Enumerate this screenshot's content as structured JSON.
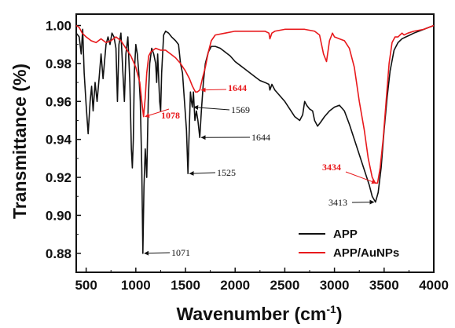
{
  "chart_data": {
    "type": "line",
    "xlabel": "Wavenumber (cm",
    "xlabel_sup": "-1",
    "xlabel_close": ")",
    "ylabel": "Transmittance (%)",
    "xlim": [
      400,
      4000
    ],
    "ylim": [
      0.87,
      1.006
    ],
    "x_ticks": [
      500,
      1000,
      1500,
      2000,
      2500,
      3000,
      3500,
      4000
    ],
    "y_ticks": [
      0.88,
      0.9,
      0.92,
      0.94,
      0.96,
      0.98,
      1.0
    ],
    "x_tick_labels": [
      "500",
      "1000",
      "1500",
      "2000",
      "2500",
      "3000",
      "3500",
      "4000"
    ],
    "y_tick_labels": [
      "0.88",
      "0.90",
      "0.92",
      "0.94",
      "0.96",
      "0.98",
      "1.00"
    ],
    "grid": false,
    "legend_position": "bottom-right",
    "colors": {
      "APP": "#111111",
      "APP/AuNPs": "#e8191c"
    },
    "series": [
      {
        "name": "APP",
        "color": "#111111",
        "points": [
          [
            400,
            0.996
          ],
          [
            430,
            0.994
          ],
          [
            450,
            0.985
          ],
          [
            465,
            0.998
          ],
          [
            480,
            0.975
          ],
          [
            500,
            0.958
          ],
          [
            520,
            0.943
          ],
          [
            540,
            0.96
          ],
          [
            555,
            0.968
          ],
          [
            570,
            0.955
          ],
          [
            590,
            0.97
          ],
          [
            610,
            0.96
          ],
          [
            630,
            0.972
          ],
          [
            650,
            0.985
          ],
          [
            670,
            0.972
          ],
          [
            700,
            0.99
          ],
          [
            720,
            0.994
          ],
          [
            740,
            0.99
          ],
          [
            760,
            0.996
          ],
          [
            780,
            0.994
          ],
          [
            800,
            0.988
          ],
          [
            815,
            0.96
          ],
          [
            830,
            0.99
          ],
          [
            850,
            0.996
          ],
          [
            870,
            0.975
          ],
          [
            885,
            0.96
          ],
          [
            900,
            0.985
          ],
          [
            920,
            0.994
          ],
          [
            940,
            0.97
          ],
          [
            955,
            0.935
          ],
          [
            965,
            0.925
          ],
          [
            975,
            0.94
          ],
          [
            985,
            0.975
          ],
          [
            1000,
            0.99
          ],
          [
            1015,
            0.985
          ],
          [
            1030,
            0.975
          ],
          [
            1045,
            0.96
          ],
          [
            1060,
            0.925
          ],
          [
            1071,
            0.88
          ],
          [
            1082,
            0.915
          ],
          [
            1095,
            0.935
          ],
          [
            1110,
            0.92
          ],
          [
            1125,
            0.96
          ],
          [
            1140,
            0.98
          ],
          [
            1160,
            0.988
          ],
          [
            1180,
            0.985
          ],
          [
            1200,
            0.98
          ],
          [
            1210,
            0.97
          ],
          [
            1220,
            0.985
          ],
          [
            1240,
            0.96
          ],
          [
            1250,
            0.955
          ],
          [
            1260,
            0.975
          ],
          [
            1280,
            0.995
          ],
          [
            1300,
            0.997
          ],
          [
            1330,
            0.996
          ],
          [
            1360,
            0.994
          ],
          [
            1400,
            0.992
          ],
          [
            1430,
            0.99
          ],
          [
            1450,
            0.98
          ],
          [
            1470,
            0.975
          ],
          [
            1490,
            0.96
          ],
          [
            1510,
            0.945
          ],
          [
            1525,
            0.922
          ],
          [
            1535,
            0.94
          ],
          [
            1550,
            0.965
          ],
          [
            1560,
            0.96
          ],
          [
            1569,
            0.957
          ],
          [
            1580,
            0.965
          ],
          [
            1595,
            0.95
          ],
          [
            1610,
            0.955
          ],
          [
            1625,
            0.95
          ],
          [
            1644,
            0.941
          ],
          [
            1660,
            0.955
          ],
          [
            1680,
            0.97
          ],
          [
            1700,
            0.98
          ],
          [
            1730,
            0.986
          ],
          [
            1760,
            0.989
          ],
          [
            1800,
            0.989
          ],
          [
            1850,
            0.988
          ],
          [
            1900,
            0.986
          ],
          [
            1950,
            0.984
          ],
          [
            2000,
            0.981
          ],
          [
            2050,
            0.979
          ],
          [
            2100,
            0.977
          ],
          [
            2150,
            0.975
          ],
          [
            2200,
            0.973
          ],
          [
            2250,
            0.971
          ],
          [
            2300,
            0.97
          ],
          [
            2340,
            0.969
          ],
          [
            2350,
            0.966
          ],
          [
            2370,
            0.969
          ],
          [
            2400,
            0.966
          ],
          [
            2450,
            0.963
          ],
          [
            2500,
            0.96
          ],
          [
            2550,
            0.956
          ],
          [
            2600,
            0.952
          ],
          [
            2650,
            0.95
          ],
          [
            2680,
            0.953
          ],
          [
            2700,
            0.96
          ],
          [
            2720,
            0.958
          ],
          [
            2750,
            0.956
          ],
          [
            2780,
            0.955
          ],
          [
            2800,
            0.95
          ],
          [
            2830,
            0.947
          ],
          [
            2860,
            0.949
          ],
          [
            2900,
            0.952
          ],
          [
            2950,
            0.955
          ],
          [
            3000,
            0.957
          ],
          [
            3050,
            0.958
          ],
          [
            3100,
            0.955
          ],
          [
            3150,
            0.948
          ],
          [
            3200,
            0.94
          ],
          [
            3250,
            0.932
          ],
          [
            3300,
            0.924
          ],
          [
            3350,
            0.916
          ],
          [
            3380,
            0.91
          ],
          [
            3413,
            0.907
          ],
          [
            3440,
            0.912
          ],
          [
            3470,
            0.925
          ],
          [
            3500,
            0.945
          ],
          [
            3530,
            0.962
          ],
          [
            3560,
            0.976
          ],
          [
            3600,
            0.987
          ],
          [
            3640,
            0.991
          ],
          [
            3680,
            0.993
          ],
          [
            3720,
            0.994
          ],
          [
            3760,
            0.995
          ],
          [
            3800,
            0.996
          ],
          [
            3850,
            0.997
          ],
          [
            3900,
            0.998
          ],
          [
            3950,
            0.999
          ],
          [
            4000,
            1.0
          ]
        ]
      },
      {
        "name": "APP/AuNPs",
        "color": "#e8191c",
        "points": [
          [
            400,
            1.0
          ],
          [
            430,
            0.999
          ],
          [
            460,
            0.996
          ],
          [
            500,
            0.994
          ],
          [
            550,
            0.992
          ],
          [
            600,
            0.991
          ],
          [
            650,
            0.993
          ],
          [
            700,
            0.991
          ],
          [
            750,
            0.992
          ],
          [
            800,
            0.994
          ],
          [
            850,
            0.992
          ],
          [
            900,
            0.988
          ],
          [
            950,
            0.984
          ],
          [
            1000,
            0.978
          ],
          [
            1040,
            0.97
          ],
          [
            1060,
            0.96
          ],
          [
            1078,
            0.952
          ],
          [
            1095,
            0.962
          ],
          [
            1110,
            0.975
          ],
          [
            1130,
            0.984
          ],
          [
            1150,
            0.986
          ],
          [
            1200,
            0.988
          ],
          [
            1250,
            0.987
          ],
          [
            1300,
            0.987
          ],
          [
            1350,
            0.985
          ],
          [
            1400,
            0.983
          ],
          [
            1450,
            0.98
          ],
          [
            1500,
            0.976
          ],
          [
            1540,
            0.972
          ],
          [
            1570,
            0.968
          ],
          [
            1600,
            0.965
          ],
          [
            1620,
            0.965
          ],
          [
            1644,
            0.966
          ],
          [
            1670,
            0.972
          ],
          [
            1700,
            0.978
          ],
          [
            1730,
            0.986
          ],
          [
            1760,
            0.992
          ],
          [
            1800,
            0.995
          ],
          [
            1900,
            0.996
          ],
          [
            2000,
            0.997
          ],
          [
            2100,
            0.997
          ],
          [
            2200,
            0.997
          ],
          [
            2300,
            0.997
          ],
          [
            2340,
            0.996
          ],
          [
            2350,
            0.993
          ],
          [
            2370,
            0.996
          ],
          [
            2400,
            0.997
          ],
          [
            2500,
            0.998
          ],
          [
            2600,
            0.998
          ],
          [
            2700,
            0.998
          ],
          [
            2800,
            0.997
          ],
          [
            2850,
            0.995
          ],
          [
            2890,
            0.985
          ],
          [
            2920,
            0.981
          ],
          [
            2950,
            0.992
          ],
          [
            2980,
            0.996
          ],
          [
            3000,
            0.994
          ],
          [
            3050,
            0.993
          ],
          [
            3100,
            0.992
          ],
          [
            3150,
            0.988
          ],
          [
            3200,
            0.978
          ],
          [
            3250,
            0.96
          ],
          [
            3300,
            0.945
          ],
          [
            3340,
            0.93
          ],
          [
            3380,
            0.92
          ],
          [
            3410,
            0.917
          ],
          [
            3434,
            0.917
          ],
          [
            3460,
            0.925
          ],
          [
            3490,
            0.94
          ],
          [
            3520,
            0.96
          ],
          [
            3550,
            0.98
          ],
          [
            3580,
            0.991
          ],
          [
            3610,
            0.994
          ],
          [
            3640,
            0.994
          ],
          [
            3680,
            0.996
          ],
          [
            3700,
            0.995
          ],
          [
            3740,
            0.996
          ],
          [
            3800,
            0.997
          ],
          [
            3900,
            0.998
          ],
          [
            4000,
            1.0
          ]
        ]
      }
    ],
    "annotations": [
      {
        "text": "1071",
        "color": "#111111",
        "at": [
          1071,
          0.88
        ]
      },
      {
        "text": "1525",
        "color": "#111111",
        "at": [
          1525,
          0.922
        ]
      },
      {
        "text": "1569",
        "color": "#111111",
        "at": [
          1569,
          0.957
        ]
      },
      {
        "text": "1644",
        "color": "#111111",
        "at": [
          1644,
          0.941
        ]
      },
      {
        "text": "3413",
        "color": "#111111",
        "at": [
          3413,
          0.907
        ]
      },
      {
        "text": "1078",
        "color": "#e8191c",
        "at": [
          1078,
          0.952
        ]
      },
      {
        "text": "1644",
        "color": "#e8191c",
        "at": [
          1644,
          0.966
        ]
      },
      {
        "text": "3434",
        "color": "#e8191c",
        "at": [
          3434,
          0.917
        ]
      }
    ],
    "legend": [
      {
        "label": "APP",
        "color": "#111111"
      },
      {
        "label": "APP/AuNPs",
        "color": "#e8191c"
      }
    ]
  }
}
